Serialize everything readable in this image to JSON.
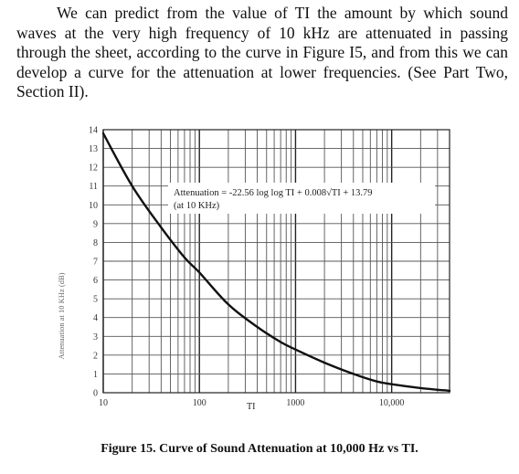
{
  "document": {
    "paragraph": "We can predict from the value of TI the amount by which sound waves at the very high frequency of 10 kHz are attenuated in passing through the sheet, according to the curve in Figure I5, and from this we can develop a curve for the attenuation at lower frequencies. (See Part Two, Section II).",
    "caption": "Figure 15.  Curve of Sound Attenuation at 10,000 Hz vs TI."
  },
  "chart_data": {
    "type": "line",
    "xscale": "log",
    "xlim": [
      10,
      40000
    ],
    "ylim": [
      0,
      14
    ],
    "xlabel": "TI",
    "ylabel": "Attenuation at 10 KHz (dB)",
    "x_ticks": [
      {
        "value": 10,
        "label": "10"
      },
      {
        "value": 100,
        "label": "100"
      },
      {
        "value": 1000,
        "label": "1000"
      },
      {
        "value": 10000,
        "label": "10,000"
      }
    ],
    "y_ticks": [
      0,
      1,
      2,
      3,
      4,
      5,
      6,
      7,
      8,
      9,
      10,
      11,
      12,
      13,
      14
    ],
    "grid": true,
    "annotation": {
      "line1": "Attenuation = -22.56 log log TI + 0.008√TI + 13.79",
      "line2": "(at 10 KHz)"
    },
    "series": [
      {
        "x": [
          10,
          20,
          40,
          70,
          100,
          200,
          400,
          700,
          1000,
          2000,
          4000,
          7000,
          10000,
          20000,
          40000
        ],
        "y": [
          13.8,
          11.0,
          8.8,
          7.2,
          6.4,
          4.7,
          3.5,
          2.7,
          2.3,
          1.6,
          1.0,
          0.6,
          0.45,
          0.25,
          0.1
        ]
      }
    ]
  }
}
